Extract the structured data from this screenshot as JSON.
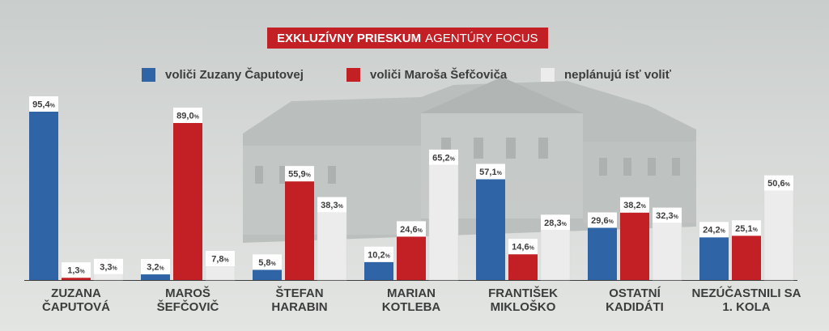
{
  "title": {
    "bold": "EXKLUZÍVNY PRIESKUM",
    "regular": "AGENTÚRY FOCUS"
  },
  "colors": {
    "caputova": "#2f64a6",
    "sefcovic": "#c32026",
    "nonvoters": "#ececec",
    "text": "#3c3c3c"
  },
  "chart_data": {
    "type": "bar",
    "categories": [
      [
        "ZUZANA",
        "ČAPUTOVÁ"
      ],
      [
        "MAROŠ",
        "ŠEFČOVIČ"
      ],
      [
        "ŠTEFAN",
        "HARABIN"
      ],
      [
        "MARIAN",
        "KOTLEBA"
      ],
      [
        "FRANTIŠEK",
        "MIKLOŠKO"
      ],
      [
        "OSTATNÍ",
        "KADIDÁTI"
      ],
      [
        "NEZÚČASTNILI SA",
        "1. KOLA"
      ]
    ],
    "series": [
      {
        "name": "voliči Zuzany Čaputovej",
        "values": [
          95.4,
          3.2,
          5.8,
          10.2,
          57.1,
          29.6,
          24.2
        ],
        "labels": [
          "95,4",
          "3,2",
          "5,8",
          "10,2",
          "57,1",
          "29,6",
          "24,2"
        ]
      },
      {
        "name": "voliči Maroša Šefčoviča",
        "values": [
          1.3,
          89.0,
          55.9,
          24.6,
          14.6,
          38.2,
          25.1
        ],
        "labels": [
          "1,3",
          "89,0",
          "55,9",
          "24,6",
          "14,6",
          "38,2",
          "25,1"
        ]
      },
      {
        "name": "neplánujú ísť voliť",
        "values": [
          3.3,
          7.8,
          38.3,
          65.2,
          28.3,
          32.3,
          50.6
        ],
        "labels": [
          "3,3",
          "7,8",
          "38,3",
          "65,2",
          "28,3",
          "32,3",
          "50,6"
        ]
      }
    ],
    "unit": "%",
    "ylim": [
      0,
      100
    ],
    "grid": false,
    "legend_position": "top"
  }
}
